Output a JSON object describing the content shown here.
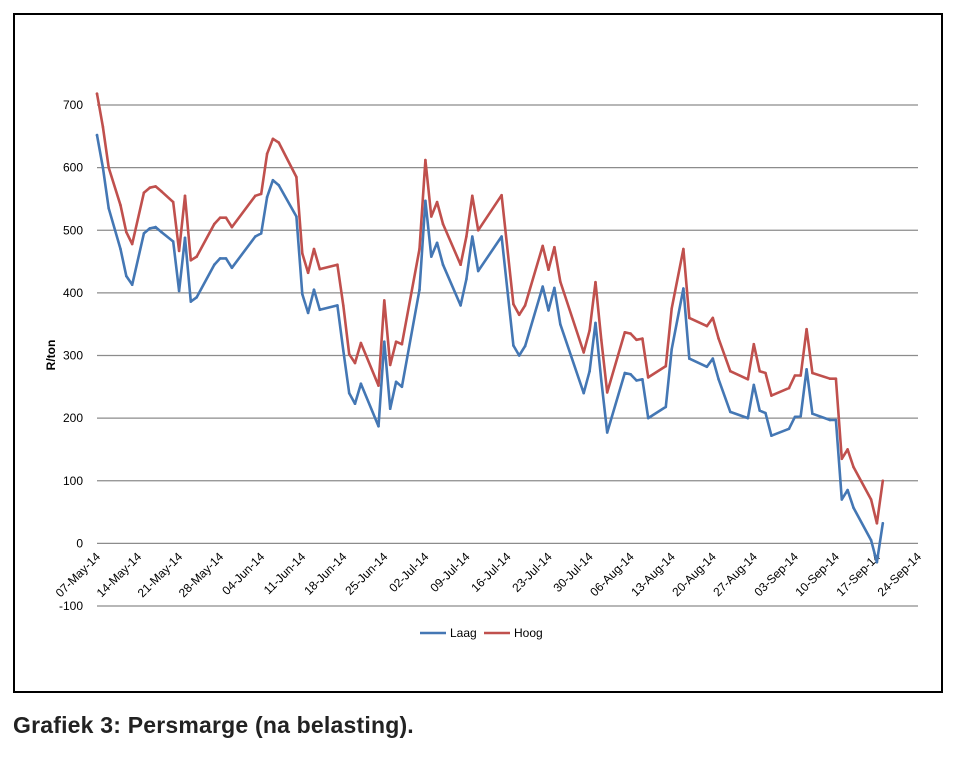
{
  "caption": "Grafiek 3: Persmarge (na belasting).",
  "chart_data": {
    "type": "line",
    "ylabel": "R/ton",
    "xlabel": "",
    "ylim": [
      -100,
      700
    ],
    "yticks": [
      700,
      600,
      500,
      400,
      300,
      200,
      100,
      0,
      -100
    ],
    "grid": true,
    "legend_position": "bottom-center",
    "x_tick_labels": [
      "07-May-14",
      "14-May-14",
      "21-May-14",
      "28-May-14",
      "04-Jun-14",
      "11-Jun-14",
      "18-Jun-14",
      "25-Jun-14",
      "02-Jul-14",
      "09-Jul-14",
      "16-Jul-14",
      "23-Jul-14",
      "30-Jul-14",
      "06-Aug-14",
      "13-Aug-14",
      "20-Aug-14",
      "27-Aug-14",
      "03-Sep-14",
      "10-Sep-14",
      "17-Sep-14",
      "24-Sep-14"
    ],
    "x_range": [
      "2014-05-07",
      "2014-09-24"
    ],
    "series": [
      {
        "name": "Laag",
        "color": "#4477b4",
        "points": [
          [
            "2014-05-07",
            652
          ],
          [
            "2014-05-08",
            600
          ],
          [
            "2014-05-09",
            535
          ],
          [
            "2014-05-11",
            470
          ],
          [
            "2014-05-12",
            427
          ],
          [
            "2014-05-13",
            413
          ],
          [
            "2014-05-15",
            495
          ],
          [
            "2014-05-16",
            503
          ],
          [
            "2014-05-17",
            505
          ],
          [
            "2014-05-18",
            497
          ],
          [
            "2014-05-20",
            482
          ],
          [
            "2014-05-21",
            403
          ],
          [
            "2014-05-22",
            488
          ],
          [
            "2014-05-23",
            386
          ],
          [
            "2014-05-24",
            393
          ],
          [
            "2014-05-27",
            445
          ],
          [
            "2014-05-28",
            455
          ],
          [
            "2014-05-29",
            455
          ],
          [
            "2014-05-30",
            440
          ],
          [
            "2014-06-03",
            490
          ],
          [
            "2014-06-04",
            495
          ],
          [
            "2014-06-05",
            553
          ],
          [
            "2014-06-06",
            580
          ],
          [
            "2014-06-07",
            572
          ],
          [
            "2014-06-10",
            522
          ],
          [
            "2014-06-11",
            398
          ],
          [
            "2014-06-12",
            368
          ],
          [
            "2014-06-13",
            405
          ],
          [
            "2014-06-14",
            373
          ],
          [
            "2014-06-17",
            380
          ],
          [
            "2014-06-18",
            308
          ],
          [
            "2014-06-19",
            240
          ],
          [
            "2014-06-20",
            223
          ],
          [
            "2014-06-21",
            255
          ],
          [
            "2014-06-24",
            187
          ],
          [
            "2014-06-25",
            322
          ],
          [
            "2014-06-26",
            215
          ],
          [
            "2014-06-27",
            258
          ],
          [
            "2014-06-28",
            250
          ],
          [
            "2014-07-01",
            405
          ],
          [
            "2014-07-02",
            547
          ],
          [
            "2014-07-03",
            458
          ],
          [
            "2014-07-04",
            480
          ],
          [
            "2014-07-05",
            445
          ],
          [
            "2014-07-08",
            380
          ],
          [
            "2014-07-09",
            422
          ],
          [
            "2014-07-10",
            490
          ],
          [
            "2014-07-11",
            435
          ],
          [
            "2014-07-15",
            490
          ],
          [
            "2014-07-17",
            316
          ],
          [
            "2014-07-18",
            300
          ],
          [
            "2014-07-19",
            315
          ],
          [
            "2014-07-22",
            410
          ],
          [
            "2014-07-23",
            372
          ],
          [
            "2014-07-24",
            408
          ],
          [
            "2014-07-25",
            350
          ],
          [
            "2014-07-29",
            240
          ],
          [
            "2014-07-30",
            275
          ],
          [
            "2014-07-31",
            352
          ],
          [
            "2014-08-01",
            260
          ],
          [
            "2014-08-02",
            177
          ],
          [
            "2014-08-05",
            272
          ],
          [
            "2014-08-06",
            270
          ],
          [
            "2014-08-07",
            260
          ],
          [
            "2014-08-08",
            262
          ],
          [
            "2014-08-09",
            200
          ],
          [
            "2014-08-12",
            218
          ],
          [
            "2014-08-13",
            310
          ],
          [
            "2014-08-15",
            407
          ],
          [
            "2014-08-16",
            295
          ],
          [
            "2014-08-19",
            282
          ],
          [
            "2014-08-20",
            295
          ],
          [
            "2014-08-21",
            262
          ],
          [
            "2014-08-23",
            210
          ],
          [
            "2014-08-26",
            200
          ],
          [
            "2014-08-27",
            253
          ],
          [
            "2014-08-28",
            212
          ],
          [
            "2014-08-29",
            208
          ],
          [
            "2014-08-30",
            172
          ],
          [
            "2014-09-02",
            183
          ],
          [
            "2014-09-03",
            202
          ],
          [
            "2014-09-04",
            203
          ],
          [
            "2014-09-05",
            278
          ],
          [
            "2014-09-06",
            207
          ],
          [
            "2014-09-09",
            197
          ],
          [
            "2014-09-10",
            197
          ],
          [
            "2014-09-11",
            70
          ],
          [
            "2014-09-12",
            85
          ],
          [
            "2014-09-13",
            57
          ],
          [
            "2014-09-16",
            5
          ],
          [
            "2014-09-17",
            -30
          ],
          [
            "2014-09-18",
            32
          ]
        ]
      },
      {
        "name": "Hoog",
        "color": "#c0504d",
        "points": [
          [
            "2014-05-07",
            718
          ],
          [
            "2014-05-08",
            665
          ],
          [
            "2014-05-09",
            600
          ],
          [
            "2014-05-11",
            540
          ],
          [
            "2014-05-12",
            497
          ],
          [
            "2014-05-13",
            478
          ],
          [
            "2014-05-15",
            560
          ],
          [
            "2014-05-16",
            568
          ],
          [
            "2014-05-17",
            570
          ],
          [
            "2014-05-18",
            562
          ],
          [
            "2014-05-20",
            545
          ],
          [
            "2014-05-21",
            467
          ],
          [
            "2014-05-22",
            555
          ],
          [
            "2014-05-23",
            452
          ],
          [
            "2014-05-24",
            458
          ],
          [
            "2014-05-27",
            510
          ],
          [
            "2014-05-28",
            520
          ],
          [
            "2014-05-29",
            520
          ],
          [
            "2014-05-30",
            505
          ],
          [
            "2014-06-03",
            555
          ],
          [
            "2014-06-04",
            558
          ],
          [
            "2014-06-05",
            622
          ],
          [
            "2014-06-06",
            646
          ],
          [
            "2014-06-07",
            640
          ],
          [
            "2014-06-10",
            585
          ],
          [
            "2014-06-11",
            463
          ],
          [
            "2014-06-12",
            432
          ],
          [
            "2014-06-13",
            470
          ],
          [
            "2014-06-14",
            438
          ],
          [
            "2014-06-17",
            445
          ],
          [
            "2014-06-18",
            380
          ],
          [
            "2014-06-19",
            302
          ],
          [
            "2014-06-20",
            288
          ],
          [
            "2014-06-21",
            320
          ],
          [
            "2014-06-24",
            252
          ],
          [
            "2014-06-25",
            388
          ],
          [
            "2014-06-26",
            285
          ],
          [
            "2014-06-27",
            322
          ],
          [
            "2014-06-28",
            318
          ],
          [
            "2014-07-01",
            470
          ],
          [
            "2014-07-02",
            612
          ],
          [
            "2014-07-03",
            522
          ],
          [
            "2014-07-04",
            545
          ],
          [
            "2014-07-05",
            510
          ],
          [
            "2014-07-08",
            445
          ],
          [
            "2014-07-09",
            490
          ],
          [
            "2014-07-10",
            555
          ],
          [
            "2014-07-11",
            500
          ],
          [
            "2014-07-15",
            556
          ],
          [
            "2014-07-17",
            382
          ],
          [
            "2014-07-18",
            365
          ],
          [
            "2014-07-19",
            380
          ],
          [
            "2014-07-22",
            475
          ],
          [
            "2014-07-23",
            437
          ],
          [
            "2014-07-24",
            473
          ],
          [
            "2014-07-25",
            418
          ],
          [
            "2014-07-29",
            305
          ],
          [
            "2014-07-30",
            340
          ],
          [
            "2014-07-31",
            417
          ],
          [
            "2014-08-01",
            325
          ],
          [
            "2014-08-02",
            241
          ],
          [
            "2014-08-05",
            337
          ],
          [
            "2014-08-06",
            335
          ],
          [
            "2014-08-07",
            325
          ],
          [
            "2014-08-08",
            327
          ],
          [
            "2014-08-09",
            265
          ],
          [
            "2014-08-12",
            283
          ],
          [
            "2014-08-13",
            375
          ],
          [
            "2014-08-15",
            470
          ],
          [
            "2014-08-16",
            360
          ],
          [
            "2014-08-19",
            347
          ],
          [
            "2014-08-20",
            360
          ],
          [
            "2014-08-21",
            327
          ],
          [
            "2014-08-23",
            275
          ],
          [
            "2014-08-26",
            262
          ],
          [
            "2014-08-27",
            318
          ],
          [
            "2014-08-28",
            275
          ],
          [
            "2014-08-29",
            272
          ],
          [
            "2014-08-30",
            236
          ],
          [
            "2014-09-02",
            248
          ],
          [
            "2014-09-03",
            268
          ],
          [
            "2014-09-04",
            268
          ],
          [
            "2014-09-05",
            342
          ],
          [
            "2014-09-06",
            272
          ],
          [
            "2014-09-09",
            263
          ],
          [
            "2014-09-10",
            263
          ],
          [
            "2014-09-11",
            135
          ],
          [
            "2014-09-12",
            150
          ],
          [
            "2014-09-13",
            122
          ],
          [
            "2014-09-16",
            70
          ],
          [
            "2014-09-17",
            32
          ],
          [
            "2014-09-18",
            100
          ]
        ]
      }
    ]
  }
}
